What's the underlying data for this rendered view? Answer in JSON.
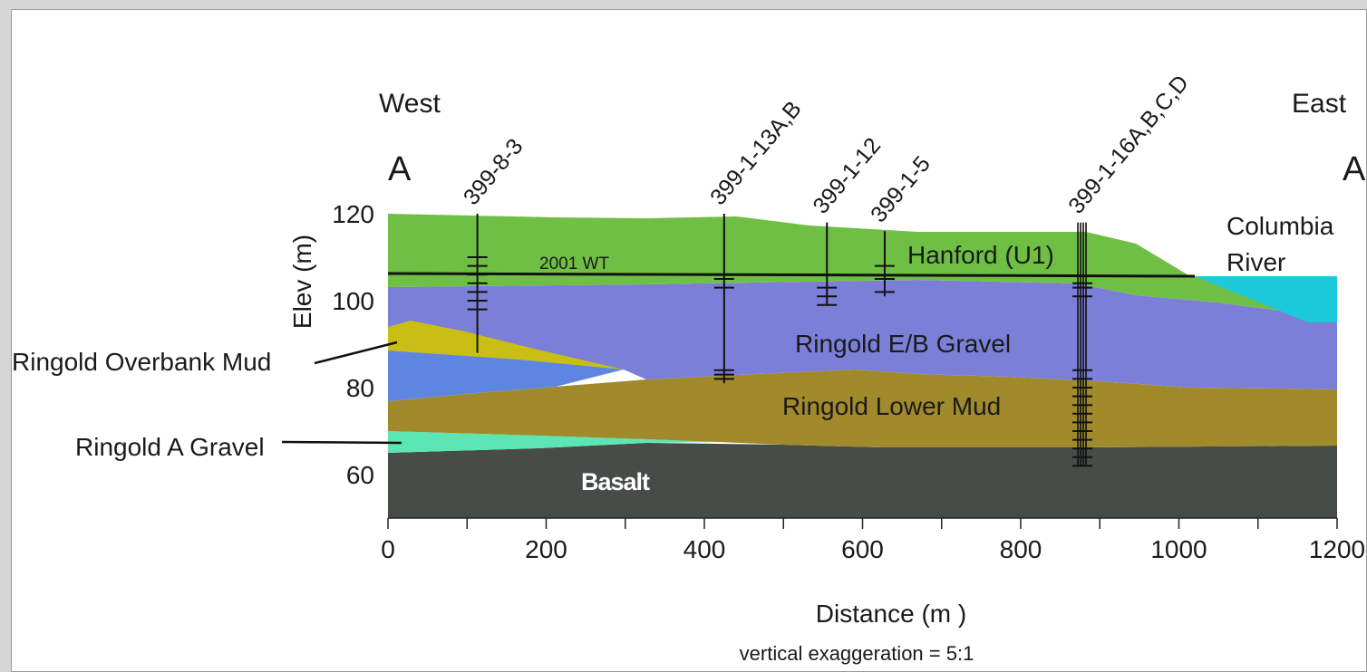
{
  "chart_data": {
    "type": "cross-section",
    "title": "",
    "xlabel": "Distance (m )",
    "ylabel": "Elev (m)",
    "xlim": [
      0,
      1200
    ],
    "ylim": [
      50,
      120
    ],
    "x_ticks": [
      0,
      200,
      400,
      600,
      800,
      1000,
      1200
    ],
    "y_ticks": [
      60,
      80,
      100,
      120
    ],
    "direction_left": "West",
    "direction_right": "East",
    "section_start": "A",
    "section_end": "A'",
    "note": "vertical exaggeration = 5:1",
    "water_table": {
      "label": "2001 WT",
      "elevation": 106
    },
    "units": [
      {
        "name": "Hanford (U1)",
        "color": "#6fbf44"
      },
      {
        "name": "Ringold E/B Gravel",
        "color": "#7b7fd8"
      },
      {
        "name": "Ringold Overbank Mud",
        "color": "#c8be14"
      },
      {
        "name": "Ringold Lower Mud",
        "color": "#a08a2c"
      },
      {
        "name": "Ringold A Gravel",
        "color": "#5ce6b4"
      },
      {
        "name": "Basalt",
        "color": "#484c48"
      },
      {
        "name": "Columbia River",
        "color": "#1cc9d9"
      }
    ],
    "wells": [
      {
        "name": "399-8-3",
        "x": 113,
        "top": 120,
        "bottom": 88,
        "ticks": [
          110,
          108,
          106,
          104,
          102,
          100,
          98
        ]
      },
      {
        "name": "399-1-13A,B",
        "x": 425,
        "top": 120,
        "bottom": 81,
        "ticks": [
          105,
          103,
          84,
          83,
          82
        ]
      },
      {
        "name": "399-1-12",
        "x": 555,
        "top": 118,
        "bottom": 99,
        "ticks": [
          103,
          101,
          99
        ]
      },
      {
        "name": "399-1-5",
        "x": 628,
        "top": 116,
        "bottom": 101,
        "ticks": [
          108,
          105,
          102
        ]
      },
      {
        "name": "399-1-16A,B,C,D",
        "x": 878,
        "top": 118,
        "bottom": 62,
        "ticks": [
          104,
          103,
          101,
          84,
          82,
          80,
          78,
          76,
          74,
          72,
          70,
          68,
          66,
          64,
          62
        ]
      }
    ]
  },
  "labels": {
    "hanford": "Hanford (U1)",
    "eb_gravel": "Ringold E/B Gravel",
    "overbank_mud": "Ringold Overbank Mud",
    "lower_mud": "Ringold Lower Mud",
    "a_gravel": "Ringold A Gravel",
    "basalt": "Basalt",
    "river_line1": "Columbia",
    "river_line2": "River"
  }
}
